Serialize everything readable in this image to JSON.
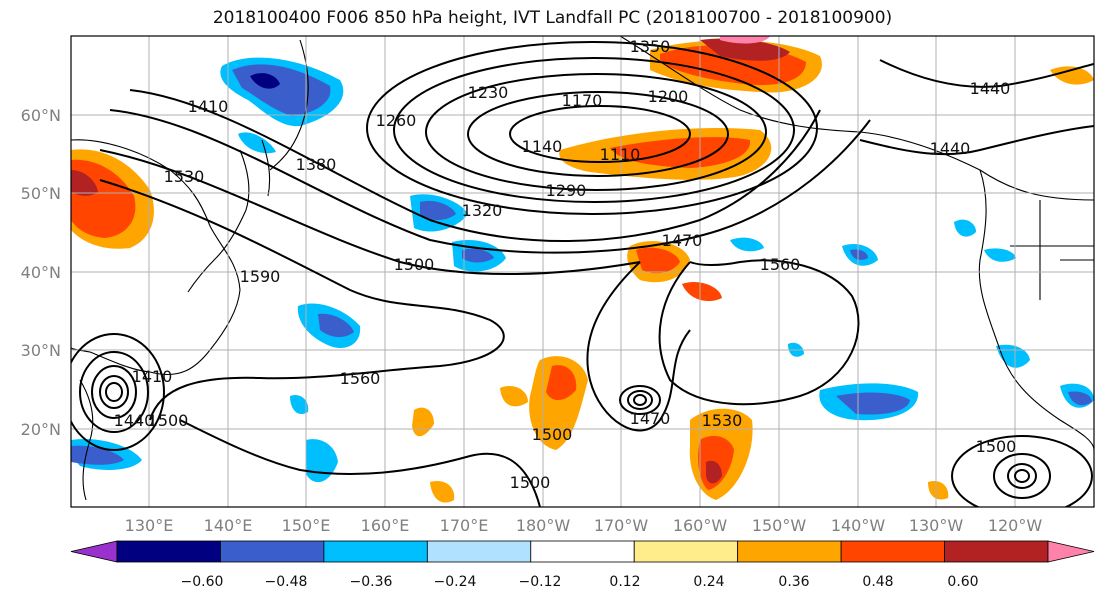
{
  "title": "2018100400 F006 850 hPa height, IVT Landfall PC (2018100700 - 2018100900)",
  "map": {
    "lon_labels": [
      "130°E",
      "140°E",
      "150°E",
      "160°E",
      "170°E",
      "180°W",
      "170°W",
      "160°W",
      "150°W",
      "140°W",
      "130°W",
      "120°W"
    ],
    "lat_labels": [
      "60°N",
      "50°N",
      "40°N",
      "30°N",
      "20°N"
    ],
    "contour_labels": [
      "1350",
      "1440",
      "1410",
      "1230",
      "1170",
      "1260",
      "1200",
      "1140",
      "1110",
      "1440",
      "1380",
      "1530",
      "1290",
      "1320",
      "1470",
      "1500",
      "1560",
      "1590",
      "1560",
      "1440",
      "1470",
      "1500",
      "1500",
      "1410",
      "1530",
      "1500",
      "1500"
    ]
  },
  "colorbar": {
    "tick_labels": [
      "−0.60",
      "−0.48",
      "−0.36",
      "−0.24",
      "−0.12",
      "0.12",
      "0.24",
      "0.36",
      "0.48",
      "0.60"
    ],
    "colors": [
      "#9932CC",
      "#000080",
      "#3A5FCD",
      "#00BFFF",
      "#B0E2FF",
      "#FFFFFF",
      "#FFEC8B",
      "#FFA500",
      "#FF4500",
      "#B22222",
      "#FF82AB"
    ]
  },
  "colors": {
    "land_outline": "#000000",
    "contour": "#000000",
    "grid": "#b0b0b0"
  }
}
